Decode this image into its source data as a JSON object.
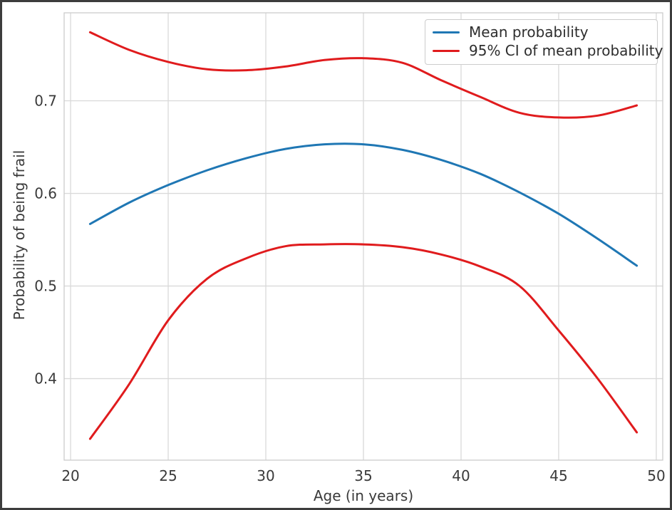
{
  "figure": {
    "background": "#ffffff",
    "border_color": "#3d3d3d",
    "grid_color": "#d9d9d9",
    "spine_color": "#cccccc",
    "tick_label_color": "#3a3a3a"
  },
  "chart_data": {
    "type": "line",
    "title": "",
    "xlabel": "Age (in years)",
    "ylabel": "Probability of being frail",
    "x": [
      21,
      23,
      25,
      27,
      29,
      31,
      33,
      35,
      37,
      39,
      41,
      43,
      45,
      47,
      49
    ],
    "series": [
      {
        "name": "Mean probability",
        "role": "mean",
        "color": "#1f77b4",
        "values": [
          0.567,
          0.59,
          0.609,
          0.625,
          0.638,
          0.648,
          0.653,
          0.653,
          0.647,
          0.636,
          0.621,
          0.601,
          0.578,
          0.551,
          0.522
        ]
      },
      {
        "name": "95% CI of mean probability",
        "role": "ci-upper",
        "color": "#e01b1d",
        "values": [
          0.774,
          0.755,
          0.742,
          0.734,
          0.733,
          0.737,
          0.744,
          0.746,
          0.741,
          0.722,
          0.704,
          0.687,
          0.682,
          0.684,
          0.695
        ]
      },
      {
        "name": "95% CI of mean probability",
        "role": "ci-lower",
        "color": "#e01b1d",
        "values": [
          0.335,
          0.394,
          0.463,
          0.508,
          0.53,
          0.543,
          0.545,
          0.545,
          0.542,
          0.534,
          0.521,
          0.5,
          0.452,
          0.4,
          0.342
        ]
      }
    ],
    "xticks": [
      "20",
      "25",
      "30",
      "35",
      "40",
      "45",
      "50"
    ],
    "xtick_values": [
      20,
      25,
      30,
      35,
      40,
      45,
      50
    ],
    "yticks": [
      "0.4",
      "0.5",
      "0.6",
      "0.7"
    ],
    "ytick_values": [
      0.4,
      0.5,
      0.6,
      0.7
    ],
    "xlim": [
      19.67,
      50.33
    ],
    "ylim": [
      0.312,
      0.795
    ],
    "grid": true,
    "legend": {
      "position": "upper right",
      "entries": [
        {
          "label": "Mean probability",
          "color": "#1f77b4"
        },
        {
          "label": "95% CI of mean probability",
          "color": "#e01b1d"
        }
      ]
    }
  }
}
